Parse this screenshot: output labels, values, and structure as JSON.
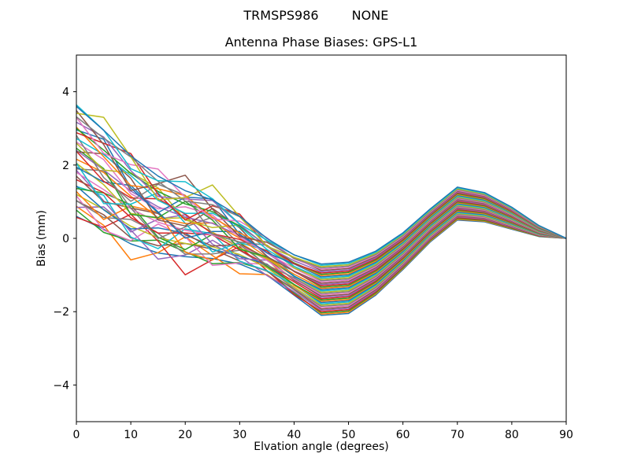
{
  "figure": {
    "suptitle_left": "TRMSPS986",
    "suptitle_right": "NONE",
    "axes_title": "Antenna Phase Biases: GPS-L1",
    "background_color": "#ffffff"
  },
  "chart_data": {
    "type": "line",
    "suptitle": "TRMSPS986        NONE",
    "title": "Antenna Phase Biases: GPS-L1",
    "xlabel": "Elvation angle (degrees)",
    "ylabel": "Bias (mm)",
    "xlim": [
      0,
      90
    ],
    "ylim": [
      -5,
      5
    ],
    "x_ticks": [
      0,
      10,
      20,
      30,
      40,
      50,
      60,
      70,
      80,
      90
    ],
    "y_ticks": [
      -4,
      -2,
      0,
      2,
      4
    ],
    "grid": false,
    "legend": "none",
    "series_count": 41,
    "x": [
      0,
      5,
      10,
      15,
      20,
      25,
      30,
      35,
      40,
      45,
      50,
      55,
      60,
      65,
      70,
      75,
      80,
      85,
      90
    ],
    "band_mean": [
      2.1,
      1.6,
      1.05,
      0.65,
      0.4,
      0.25,
      -0.05,
      -0.5,
      -1.0,
      -1.4,
      -1.35,
      -0.95,
      -0.35,
      0.35,
      0.95,
      0.85,
      0.55,
      0.2,
      0.0
    ],
    "band_halfwidth": [
      1.5,
      1.35,
      1.2,
      1.05,
      0.9,
      0.8,
      0.65,
      0.5,
      0.55,
      0.7,
      0.7,
      0.6,
      0.5,
      0.45,
      0.45,
      0.4,
      0.3,
      0.15,
      0.0
    ],
    "crossing_window": [
      0.4,
      0.9,
      1.0,
      1.0,
      1.0,
      0.9,
      0.6,
      0.3,
      0.1,
      0,
      0,
      0,
      0,
      0,
      0,
      0,
      0,
      0,
      0
    ],
    "crossing_period_deg": 20,
    "series_params": {
      "u": [
        -1,
        -0.95,
        -0.9,
        -0.85,
        -0.8,
        -0.75,
        -0.7,
        -0.65,
        -0.6,
        -0.55,
        -0.5,
        -0.45,
        -0.4,
        -0.35,
        -0.3,
        -0.25,
        -0.2,
        -0.15,
        -0.1,
        -0.05,
        0,
        0.05,
        0.1,
        0.15,
        0.2,
        0.25,
        0.3,
        0.35,
        0.4,
        0.45,
        0.5,
        0.55,
        0.6,
        0.65,
        0.7,
        0.75,
        0.8,
        0.85,
        0.9,
        0.95,
        1
      ],
      "phase_deg": [
        0,
        85,
        170,
        255,
        340,
        65,
        150,
        235,
        320,
        45,
        130,
        215,
        300,
        25,
        110,
        195,
        280,
        5,
        90,
        175,
        260,
        345,
        70,
        155,
        240,
        325,
        50,
        135,
        220,
        305,
        30,
        115,
        200,
        285,
        10,
        95,
        180,
        265,
        350,
        75,
        160
      ],
      "amplitude": [
        0,
        0.5,
        0.25,
        0.65,
        0.4,
        0.15,
        0.55,
        0.3,
        0,
        0.5,
        0.25,
        0.65,
        0.4,
        0.15,
        0.55,
        0.3,
        0,
        0.5,
        0.25,
        0.65,
        0.4,
        0.15,
        0.55,
        0.3,
        0,
        0.5,
        0.25,
        0.65,
        0.4,
        0.15,
        0.55,
        0.3,
        0,
        0.5,
        0.25,
        0.65,
        0.4,
        0.15,
        0.55,
        0.3,
        0
      ]
    },
    "colors": [
      "#1f77b4",
      "#ff7f0e",
      "#2ca02c",
      "#d62728",
      "#9467bd",
      "#8c564b",
      "#e377c2",
      "#7f7f7f",
      "#bcbd22",
      "#17becf"
    ],
    "line_width": 1.5,
    "axes_box_color": "#000000"
  }
}
